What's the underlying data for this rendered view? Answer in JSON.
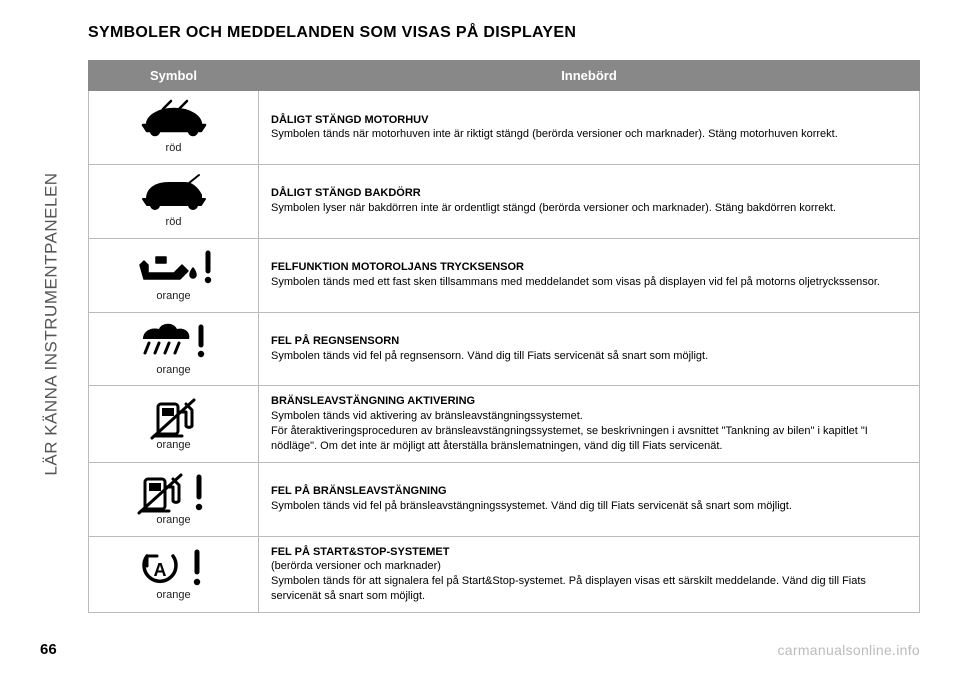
{
  "page": {
    "side_label": "LÄR KÄNNA INSTRUMENTPANELEN",
    "title": "SYMBOLER OCH MEDDELANDEN SOM VISAS PÅ DISPLAYEN",
    "page_number": "66",
    "watermark": "carmanualsonline.info"
  },
  "table": {
    "header_bg": "#888888",
    "header_text_color": "#ffffff",
    "border_color": "#bbbbbb",
    "col_symbol_header": "Symbol",
    "col_meaning_header": "Innebörd",
    "rows": [
      {
        "icon_name": "car-hood-open-icon",
        "color_label": "röd",
        "heading": "DÅLIGT STÄNGD MOTORHUV",
        "body": "Symbolen tänds när motorhuven inte är riktigt stängd (berörda versioner och marknader). Stäng motorhuven korrekt."
      },
      {
        "icon_name": "car-trunk-open-icon",
        "color_label": "röd",
        "heading": "DÅLIGT STÄNGD BAKDÖRR",
        "body": "Symbolen lyser när bakdörren inte är ordentligt stängd (berörda versioner och marknader). Stäng bakdörren korrekt."
      },
      {
        "icon_name": "oil-can-warning-icon",
        "color_label": "orange",
        "heading": "FELFUNKTION MOTOROLJANS TRYCKSENSOR",
        "body": "Symbolen tänds med ett fast sken tillsammans med meddelandet som visas på displayen vid fel på motorns oljetryckssensor."
      },
      {
        "icon_name": "rain-sensor-warning-icon",
        "color_label": "orange",
        "heading": "FEL PÅ REGNSENSORN",
        "body": "Symbolen tänds vid fel på regnsensorn. Vänd dig till Fiats servicenät så snart som möjligt."
      },
      {
        "icon_name": "fuel-cutoff-icon",
        "color_label": "orange",
        "heading": "BRÄNSLEAVSTÄNGNING AKTIVERING",
        "body": "Symbolen tänds vid aktivering av bränsleavstängningssystemet.\nFör återaktiveringsproceduren av bränsleavstängningssystemet, se beskrivningen i avsnittet \"Tankning av bilen\" i kapitlet \"I nödläge\". Om det inte är möjligt att återställa bränslematningen, vänd dig till Fiats servicenät."
      },
      {
        "icon_name": "fuel-system-fault-icon",
        "color_label": "orange",
        "heading": "FEL PÅ BRÄNSLEAVSTÄNGNING",
        "body": "Symbolen tänds vid fel på bränsleavstängningssystemet. Vänd dig till Fiats servicenät så snart som möjligt."
      },
      {
        "icon_name": "start-stop-fault-icon",
        "color_label": "orange",
        "heading": "FEL PÅ START&STOP-SYSTEMET",
        "body_html": "(berörda versioner och marknader)\nSymbolen tänds för att signalera fel på Start&Stop-systemet. På displayen visas ett särskilt meddelande. Vänd dig till Fiats servicenät så snart som möjligt."
      }
    ]
  }
}
